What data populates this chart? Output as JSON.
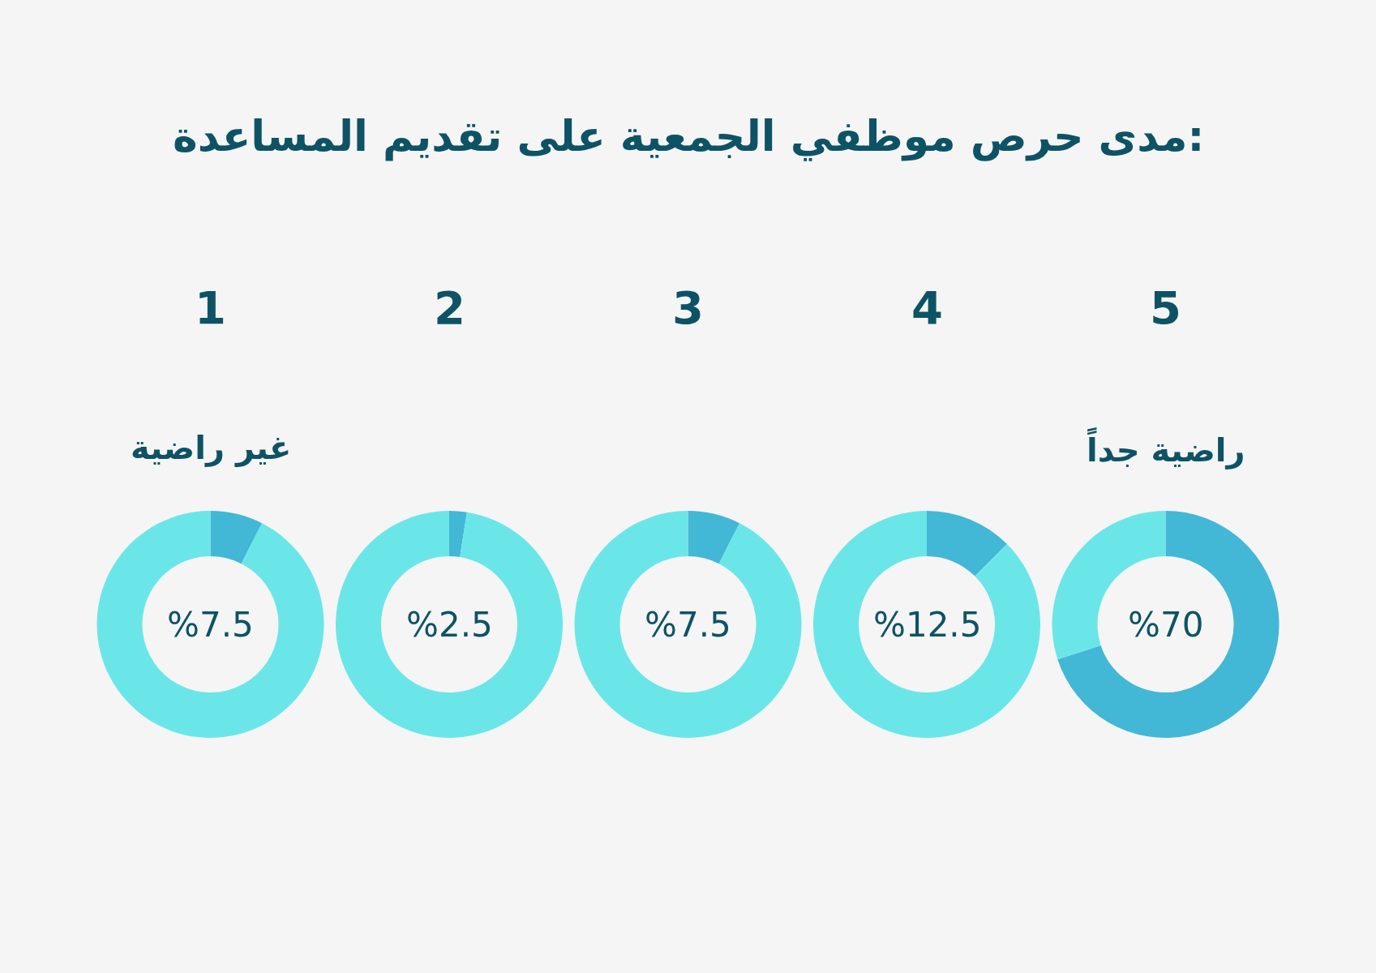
{
  "chart_data": [
    {
      "type": "other",
      "title": "مدى حرص موظفي الجمعية على تقديم المساعدة:"
    },
    {
      "type": "donut",
      "title": "1",
      "subtitle": "غير راضية",
      "categories": [
        null,
        null
      ],
      "values": [
        7.5,
        92.5
      ],
      "colors": [
        "#43b7d6",
        "#6be6e8"
      ],
      "annotations": [
        "%7.5"
      ]
    },
    {
      "type": "donut",
      "title": "2",
      "categories": [
        null,
        null
      ],
      "values": [
        2.5,
        97.5
      ],
      "colors": [
        "#43b7d6",
        "#6be6e8"
      ],
      "annotations": [
        "%2.5"
      ]
    },
    {
      "type": "donut",
      "title": "3",
      "categories": [
        null,
        null
      ],
      "values": [
        7.5,
        92.5
      ],
      "colors": [
        "#43b7d6",
        "#6be6e8"
      ],
      "annotations": [
        "%7.5"
      ]
    },
    {
      "type": "donut",
      "title": "4",
      "categories": [
        null,
        null
      ],
      "values": [
        12.5,
        87.5
      ],
      "colors": [
        "#43b7d6",
        "#6be6e8"
      ],
      "annotations": [
        "%12.5"
      ]
    },
    {
      "type": "donut",
      "title": "5",
      "subtitle": "راضية جداً",
      "categories": [
        null,
        null
      ],
      "values": [
        70,
        30
      ],
      "colors": [
        "#43b7d6",
        "#6be6e8"
      ],
      "annotations": [
        "%70"
      ]
    }
  ]
}
